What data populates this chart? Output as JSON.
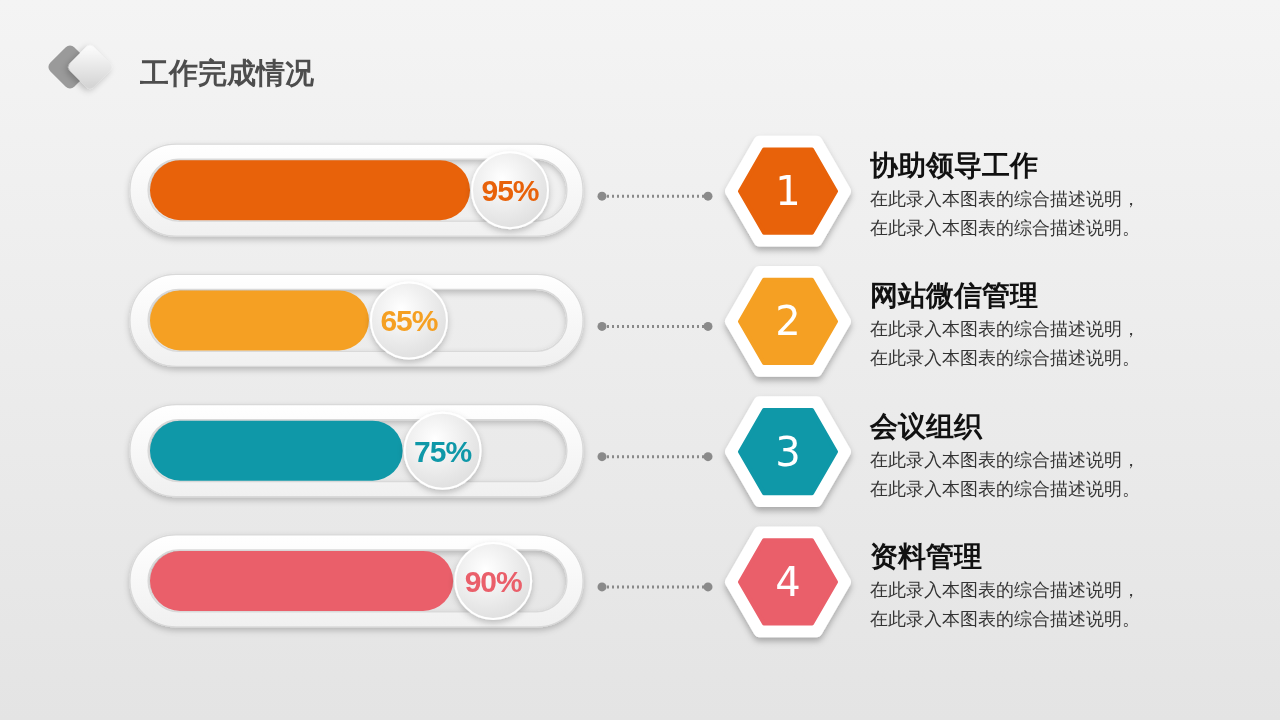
{
  "chart_data": {
    "type": "bar",
    "orientation": "horizontal",
    "title": "工作完成情况",
    "categories": [
      "协助领导工作",
      "网站微信管理",
      "会议组织",
      "资料管理"
    ],
    "values": [
      95,
      65,
      75,
      90
    ],
    "colors": [
      "#e8620a",
      "#f5a023",
      "#0f98a8",
      "#ea5f6a"
    ],
    "value_labels": [
      "95%",
      "65%",
      "75%",
      "90%"
    ],
    "tick_labels": "y",
    "annotations": [
      "1",
      "在此录入本图表的综合描述说明，",
      "在此录入本图表的综合描述说明。",
      "2",
      "在此录入本图表的综合描述说明，",
      "在此录入本图表的综合描述说明。",
      "3",
      "在此录入本图表的综合描述说明，",
      "在此录入本图表的综合描述说明。",
      "4",
      "在此录入本图表的综合描述说明，",
      "在此录入本图表的综合描述说明。"
    ]
  }
}
